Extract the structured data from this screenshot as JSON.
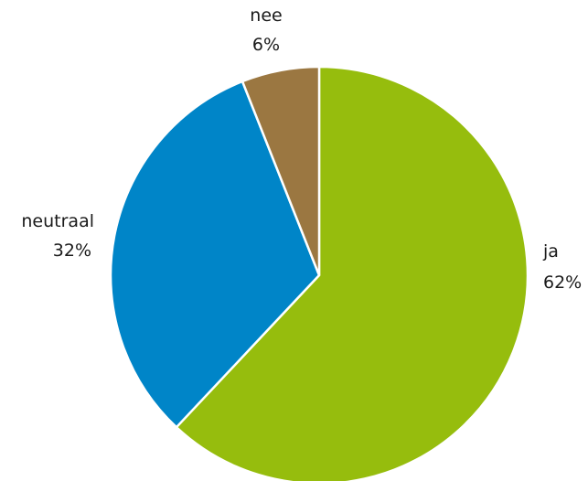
{
  "chart_data": {
    "type": "pie",
    "slices": [
      {
        "label": "ja",
        "value": 62,
        "value_label": "62%",
        "color": "#96bd0d"
      },
      {
        "label": "neutraal",
        "value": 32,
        "value_label": "32%",
        "color": "#0085c8"
      },
      {
        "label": "nee",
        "value": 6,
        "value_label": "6%",
        "color": "#9b7741"
      }
    ],
    "start": "top",
    "direction": "clockwise",
    "labels": "outside, name above percentage"
  }
}
